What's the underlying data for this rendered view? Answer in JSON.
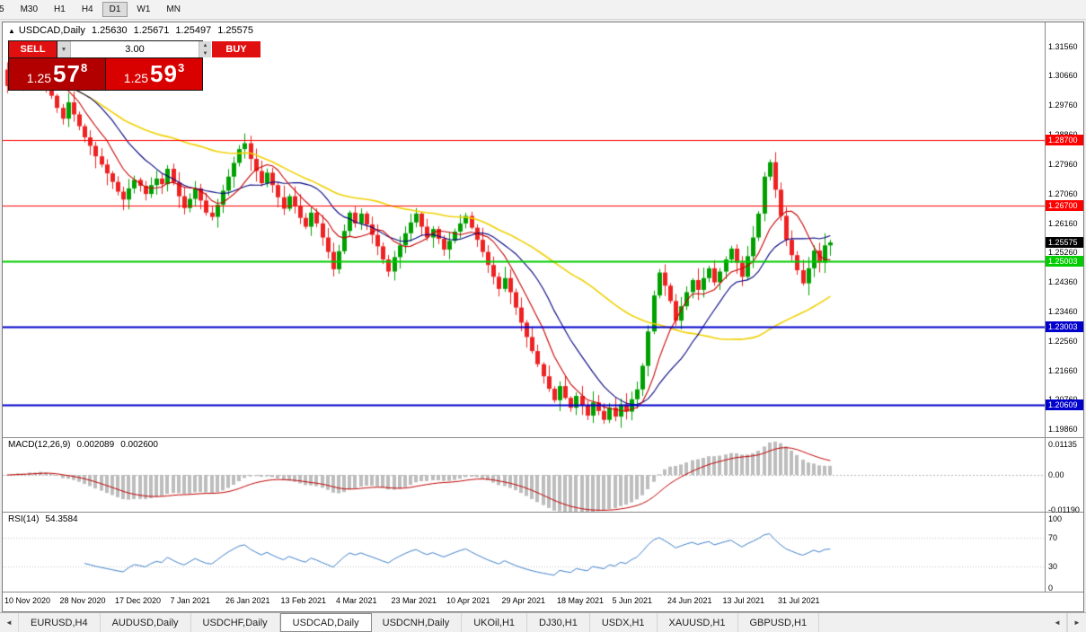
{
  "toolbar": {
    "timeframes": [
      "5",
      "M30",
      "H1",
      "H4",
      "D1",
      "W1",
      "MN"
    ],
    "active_timeframe": "D1"
  },
  "chart_header": {
    "expand_icon": "▲",
    "symbol": "USDCAD,Daily",
    "open": "1.25630",
    "high": "1.25671",
    "low": "1.25497",
    "close": "1.25575"
  },
  "trade_panel": {
    "sell_label": "SELL",
    "buy_label": "BUY",
    "lot_value": "3.00",
    "dropdown_icon": "▼",
    "spin_up_icon": "▲",
    "spin_down_icon": "▼",
    "sell_price": {
      "prefix": "1.25",
      "digits": "57",
      "pip": "8"
    },
    "buy_price": {
      "prefix": "1.25",
      "digits": "59",
      "pip": "3"
    }
  },
  "chart_data": {
    "type": "candlestick",
    "symbol": "USDCAD",
    "timeframe": "Daily",
    "title": "USDCAD,Daily",
    "ohlc_display": {
      "open": 1.2563,
      "high": 1.25671,
      "low": 1.25497,
      "close": 1.25575
    },
    "ylim": [
      1.1962,
      1.3229
    ],
    "first_open": 1.3085,
    "closes": [
      1.3035,
      1.3062,
      1.3078,
      1.3045,
      1.3088,
      1.3058,
      1.3092,
      1.304,
      1.3005,
      1.2968,
      1.2935,
      1.2985,
      1.2948,
      1.2912,
      1.2878,
      1.2852,
      1.282,
      1.2795,
      1.2768,
      1.2742,
      1.2712,
      1.2688,
      1.2722,
      1.2748,
      1.273,
      1.2705,
      1.2732,
      1.2752,
      1.2735,
      1.2782,
      1.274,
      1.2698,
      1.2662,
      1.269,
      1.2722,
      1.2685,
      1.2648,
      1.2635,
      1.2672,
      1.2715,
      1.2758,
      1.28,
      1.2842,
      1.286,
      1.2812,
      1.2775,
      1.2738,
      1.277,
      1.2732,
      1.2695,
      1.266,
      1.2698,
      1.2668,
      1.2632,
      1.2605,
      1.2648,
      1.2615,
      1.2572,
      1.2528,
      1.2475,
      1.253,
      1.2592,
      1.2648,
      1.2615,
      1.2645,
      1.2612,
      1.258,
      1.2545,
      1.2505,
      1.2468,
      1.2512,
      1.2548,
      1.2585,
      1.2618,
      1.2645,
      1.2605,
      1.2572,
      1.2598,
      1.2568,
      1.2535,
      1.2562,
      1.259,
      1.2615,
      1.2638,
      1.2602,
      1.2565,
      1.2528,
      1.2488,
      1.2452,
      1.2415,
      1.2448,
      1.2405,
      1.2358,
      1.2312,
      1.2268,
      1.2225,
      1.2185,
      1.2148,
      1.211,
      1.2075,
      1.2118,
      1.2082,
      1.2052,
      1.2088,
      1.2058,
      1.2028,
      1.2068,
      1.2042,
      1.2015,
      1.2052,
      1.2025,
      1.2062,
      1.204,
      1.2078,
      1.2108,
      1.218,
      1.2285,
      1.2395,
      1.2465,
      1.2425,
      1.2378,
      1.2318,
      1.2362,
      1.2405,
      1.2442,
      1.2412,
      1.2448,
      1.2478,
      1.2435,
      1.2468,
      1.2505,
      1.2538,
      1.2495,
      1.2452,
      1.2515,
      1.2572,
      1.2645,
      1.2758,
      1.2802,
      1.2718,
      1.2638,
      1.2565,
      1.2518,
      1.2472,
      1.2432,
      1.2478,
      1.2532,
      1.2495,
      1.2548,
      1.2557
    ],
    "x_labels": [
      "10 Nov 2020",
      "28 Nov 2020",
      "17 Dec 2020",
      "7 Jan 2021",
      "26 Jan 2021",
      "13 Feb 2021",
      "4 Mar 2021",
      "23 Mar 2021",
      "10 Apr 2021",
      "29 Apr 2021",
      "18 May 2021",
      "5 Jun 2021",
      "24 Jun 2021",
      "13 Jul 2021",
      "31 Jul 2021"
    ],
    "y_axis_labels": [
      "1.31560",
      "1.30660",
      "1.29760",
      "1.28860",
      "1.27960",
      "1.27060",
      "1.26160",
      "1.25260",
      "1.24360",
      "1.23460",
      "1.22560",
      "1.21660",
      "1.20760",
      "1.19860"
    ],
    "levels": [
      {
        "price": 1.287,
        "label": "1.28700",
        "color": "#ff0000",
        "width": 1
      },
      {
        "price": 1.267,
        "label": "1.26700",
        "color": "#ff0000",
        "width": 1
      },
      {
        "price": 1.25003,
        "label": "1.25003",
        "color": "#00cc00",
        "width": 2
      },
      {
        "price": 1.23003,
        "label": "1.23003",
        "color": "#0000cc",
        "width": 2
      },
      {
        "price": 1.20609,
        "label": "1.20609",
        "color": "#0000cc",
        "width": 2
      }
    ],
    "current_price": {
      "label": "1.25575",
      "color": "#000000"
    },
    "candle_colors": {
      "up": "#00a000",
      "down": "#ee2222"
    },
    "moving_averages": [
      {
        "period": 8,
        "color": "#c80000"
      },
      {
        "period": 16,
        "color": "#000080"
      },
      {
        "period": 45,
        "color": "#f0d000"
      }
    ],
    "indicators": {
      "macd": {
        "name": "MACD(12,26,9)",
        "value": "0.002089",
        "signal": "0.002600",
        "fast": 12,
        "slow": 26,
        "signal_period": 9,
        "ylim": [
          -0.0125,
          0.0125
        ],
        "axis_labels": [
          "0.01135",
          "0.00",
          "-0.01190"
        ],
        "hist_color": "#bdbdbd",
        "signal_color": "#c00000"
      },
      "rsi": {
        "name": "RSI(14)",
        "value": "54.3584",
        "period": 14,
        "ylim": [
          0,
          100
        ],
        "axis_labels": [
          "100",
          "70",
          "30",
          "0"
        ],
        "level_lines": [
          70,
          30
        ],
        "line_color": "#3f7fca"
      }
    }
  },
  "tabs": {
    "scroll_left_icon": "◄",
    "scroll_right_icon": "►",
    "items": [
      "EURUSD,H4",
      "AUDUSD,Daily",
      "USDCHF,Daily",
      "USDCAD,Daily",
      "USDCNH,Daily",
      "UKOil,H1",
      "DJ30,H1",
      "USDX,H1",
      "XAUUSD,H1",
      "GBPUSD,H1"
    ],
    "active": "USDCAD,Daily"
  }
}
